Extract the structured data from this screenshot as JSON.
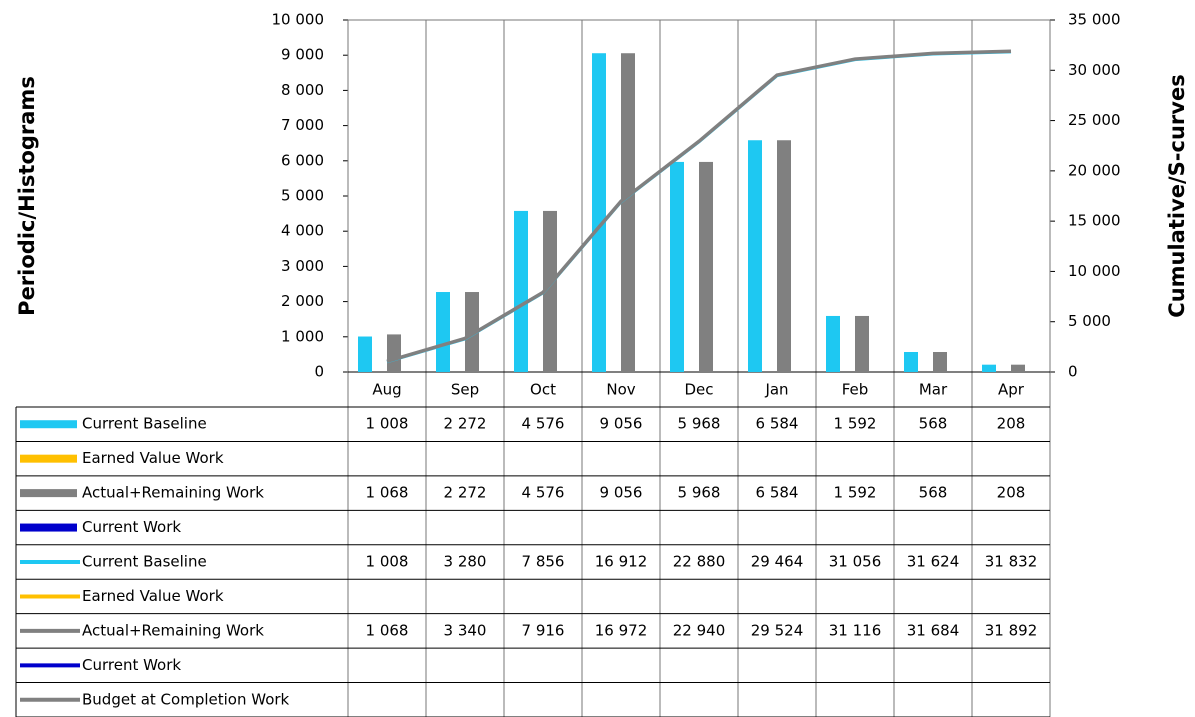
{
  "chart_data": {
    "type": "bar",
    "y_label": "Periodic/Histograms",
    "y2_label": "Cumulative/S-curves",
    "categories": [
      "Aug",
      "Sep",
      "Oct",
      "Nov",
      "Dec",
      "Jan",
      "Feb",
      "Mar",
      "Apr"
    ],
    "ylim": [
      0,
      10000
    ],
    "yticks": [
      0,
      {
        "value": 1000,
        "label": "1 000"
      },
      {
        "value": 2000,
        "label": "2 000"
      },
      {
        "value": 3000,
        "label": "3 000"
      },
      {
        "value": 4000,
        "label": "4 000"
      },
      {
        "value": 5000,
        "label": "5 000"
      },
      {
        "value": 6000,
        "label": "6 000"
      },
      {
        "value": 7000,
        "label": "7 000"
      },
      {
        "value": 8000,
        "label": "8 000"
      },
      {
        "value": 9000,
        "label": "9 000"
      },
      {
        "value": 10000,
        "label": "10 000"
      }
    ],
    "y2lim": [
      0,
      35000
    ],
    "y2ticks": [
      0,
      {
        "value": 5000,
        "label": "5 000"
      },
      {
        "value": 10000,
        "label": "10 000"
      },
      {
        "value": 15000,
        "label": "15 000"
      },
      {
        "value": 20000,
        "label": "20 000"
      },
      {
        "value": 25000,
        "label": "25 000"
      },
      {
        "value": 30000,
        "label": "30 000"
      },
      {
        "value": 35000,
        "label": "35 000"
      }
    ],
    "series": [
      {
        "name": "Current Baseline",
        "color": "#1ec8f2",
        "values": [
          1008,
          2272,
          4576,
          9056,
          5968,
          6584,
          1592,
          568,
          208
        ],
        "value_labels": [
          "1 008",
          "2 272",
          "4 576",
          "9 056",
          "5 968",
          "6 584",
          "1 592",
          "568",
          "208"
        ]
      },
      {
        "name": "Earned Value Work",
        "color": "#ffc000",
        "values": [
          null,
          null,
          null,
          null,
          null,
          null,
          null,
          null,
          null
        ]
      },
      {
        "name": "Actual+Remaining Work",
        "color": "#808080",
        "values": [
          1068,
          2272,
          4576,
          9056,
          5968,
          6584,
          1592,
          568,
          208
        ],
        "value_labels": [
          "1 068",
          "2 272",
          "4 576",
          "9 056",
          "5 968",
          "6 584",
          "1 592",
          "568",
          "208"
        ]
      },
      {
        "name": "Current Work",
        "color": "#0000cc",
        "values": [
          null,
          null,
          null,
          null,
          null,
          null,
          null,
          null,
          null
        ]
      },
      {
        "name": "Current Baseline",
        "color": "#1ec8f2",
        "axis": "y2",
        "values": [
          1008,
          3280,
          7856,
          16912,
          22880,
          29464,
          31056,
          31624,
          31832
        ],
        "value_labels": [
          "1 008",
          "3 280",
          "7 856",
          "16 912",
          "22 880",
          "29 464",
          "31 056",
          "31 624",
          "31 832"
        ]
      },
      {
        "name": "Earned Value Work",
        "color": "#ffc000",
        "axis": "y2",
        "values": [
          null,
          null,
          null,
          null,
          null,
          null,
          null,
          null,
          null
        ]
      },
      {
        "name": "Actual+Remaining Work",
        "color": "#808080",
        "axis": "y2",
        "values": [
          1068,
          3340,
          7916,
          16972,
          22940,
          29524,
          31116,
          31684,
          31892
        ],
        "value_labels": [
          "1 068",
          "3 340",
          "7 916",
          "16 972",
          "22 940",
          "29 524",
          "31 116",
          "31 684",
          "31 892"
        ]
      },
      {
        "name": "Current Work",
        "color": "#0000cc",
        "axis": "y2",
        "values": [
          null,
          null,
          null,
          null,
          null,
          null,
          null,
          null,
          null
        ]
      },
      {
        "name": "Budget at Completion Work",
        "color": "#808080",
        "axis": "y2",
        "values": [
          null,
          null,
          null,
          null,
          null,
          null,
          null,
          null,
          null
        ]
      }
    ]
  }
}
